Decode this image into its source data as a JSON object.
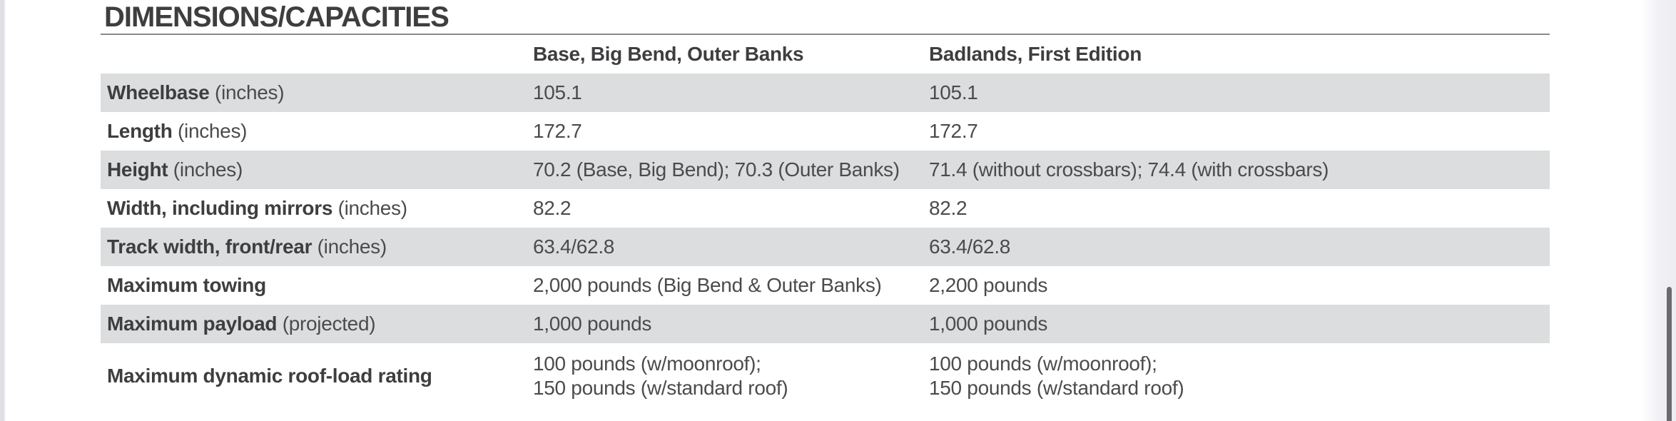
{
  "page": {
    "title": "DIMENSIONS/CAPACITIES"
  },
  "colors": {
    "row_shade": "#dcddde",
    "text_dark": "#3e3e40",
    "text_body": "#4b4b4d",
    "scrollbar_thumb": "#6a6b6e"
  },
  "table": {
    "columns": [
      "",
      "Base, Big Bend, Outer Banks",
      "Badlands, First Edition"
    ],
    "rows": [
      {
        "label_bold": "Wheelbase",
        "label_note": " (inches)",
        "col1": "105.1",
        "col2": "105.1",
        "shaded": true
      },
      {
        "label_bold": "Length",
        "label_note": " (inches)",
        "col1": "172.7",
        "col2": "172.7",
        "shaded": false
      },
      {
        "label_bold": "Height",
        "label_note": " (inches)",
        "col1": "70.2 (Base, Big Bend); 70.3 (Outer Banks)",
        "col2": "71.4 (without crossbars); 74.4 (with crossbars)",
        "shaded": true
      },
      {
        "label_bold": "Width, including mirrors",
        "label_note": " (inches)",
        "col1": "82.2",
        "col2": "82.2",
        "shaded": false
      },
      {
        "label_bold": "Track width, front/rear",
        "label_note": " (inches)",
        "col1": "63.4/62.8",
        "col2": "63.4/62.8",
        "shaded": true
      },
      {
        "label_bold": "Maximum towing",
        "label_note": "",
        "col1": "2,000 pounds (Big Bend & Outer Banks)",
        "col2": "2,200 pounds",
        "shaded": false
      },
      {
        "label_bold": "Maximum payload",
        "label_note": " (projected)",
        "col1": "1,000 pounds",
        "col2": "1,000 pounds",
        "shaded": true
      },
      {
        "label_bold": "Maximum dynamic roof-load rating",
        "label_note": "",
        "col1": "100 pounds (w/moonroof);\n150 pounds (w/standard roof)",
        "col2": "100 pounds (w/moonroof);\n150 pounds (w/standard roof)",
        "shaded": false,
        "tall": true
      }
    ]
  }
}
